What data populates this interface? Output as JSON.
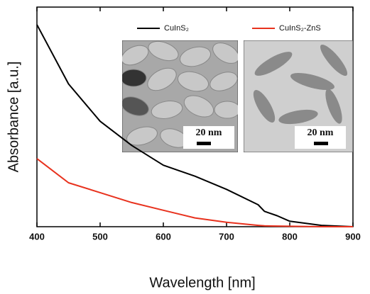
{
  "chart_data": {
    "type": "line",
    "x_label": "Wavelength [nm]",
    "y_label": "Absorbance [a.u.]",
    "x": [
      400,
      450,
      500,
      550,
      600,
      650,
      700,
      750,
      760,
      780,
      800,
      850,
      900
    ],
    "series": [
      {
        "name": "CuInS₂",
        "color": "#000000",
        "values": [
          0.92,
          0.65,
          0.48,
          0.37,
          0.28,
          0.23,
          0.17,
          0.1,
          0.07,
          0.05,
          0.025,
          0.006,
          0
        ]
      },
      {
        "name": "CuInS₂-ZnS",
        "color": "#e8321e",
        "values": [
          0.31,
          0.2,
          0.155,
          0.11,
          0.075,
          0.04,
          0.02,
          0.006,
          0.004,
          0.003,
          0.002,
          0,
          0
        ]
      }
    ],
    "xlim": [
      400,
      900
    ],
    "ylim": [
      0,
      1
    ],
    "xticks": [
      400,
      500,
      600,
      700,
      800,
      900
    ],
    "annotations": [
      "20 nm",
      "20 nm"
    ]
  }
}
